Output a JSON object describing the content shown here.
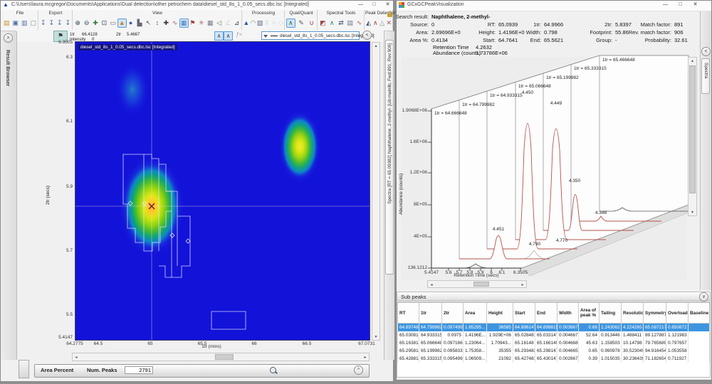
{
  "left_window": {
    "title": "C:\\Users\\laura.mcgregor\\Documents\\Applications\\Dual detection\\other petrochem data\\diesel_std_8s_1_0.05_secs.dbc.lsc [Integrated]",
    "controls": {
      "minimize": "—",
      "maximize": "□",
      "close": "✕"
    },
    "ribbon": {
      "groups": [
        {
          "label": "File",
          "icons": [
            {
              "name": "open-file-icon",
              "glyph": "▤",
              "color": "#c89028"
            },
            {
              "name": "save-icon",
              "glyph": "▣",
              "color": "#4a6fa5"
            },
            {
              "name": "save-all-icon",
              "glyph": "▥",
              "color": "#4a6fa5"
            },
            {
              "name": "close-file-icon",
              "glyph": "▢",
              "color": "#888888"
            }
          ]
        },
        {
          "label": "Export",
          "icons": [
            {
              "name": "export-image-icon",
              "glyph": "↧",
              "color": "#44679a"
            },
            {
              "name": "export-data-icon",
              "glyph": "↧",
              "color": "#44679a"
            },
            {
              "name": "export-report-icon",
              "glyph": "↧",
              "color": "#44679a"
            },
            {
              "name": "export-all-icon",
              "glyph": "↧",
              "color": "#44679a"
            }
          ]
        },
        {
          "label": "View",
          "icons": [
            {
              "name": "zoom-in-icon",
              "glyph": "⊕",
              "color": "#334455"
            },
            {
              "name": "zoom-out-icon",
              "glyph": "⊖",
              "color": "#334455"
            },
            {
              "name": "pan-icon",
              "glyph": "✚",
              "color": "#35783a"
            },
            {
              "name": "full-view-icon",
              "glyph": "⊡",
              "color": "#334455"
            },
            {
              "name": "scale-icon",
              "glyph": "▭",
              "color": "#666666"
            },
            {
              "name": "colorize-icon",
              "glyph": "▲",
              "color": "#e07818",
              "selected": true
            },
            {
              "name": "globe-icon",
              "glyph": "●",
              "color": "#3858a8"
            },
            {
              "name": "intensity-icon",
              "glyph": "▙",
              "color": "#666677"
            },
            {
              "name": "cursor-icon",
              "glyph": "↖",
              "color": "#555555"
            },
            {
              "name": "marker-icon",
              "glyph": "↕",
              "color": "#555555"
            },
            {
              "name": "crosshair-icon",
              "glyph": "✚",
              "color": "#333333"
            },
            {
              "name": "chart-icon",
              "glyph": "∿",
              "color": "#995555"
            },
            {
              "name": "grid-icon",
              "glyph": "▦",
              "color": "#3a7ab8",
              "selected": true
            },
            {
              "name": "flag-icon",
              "glyph": "⚑",
              "color": "#a04040"
            },
            {
              "name": "burst-icon",
              "glyph": "✳",
              "color": "#aa6666"
            },
            {
              "name": "table-icon",
              "glyph": "▦",
              "color": "#777788"
            },
            {
              "name": "audio-icon",
              "glyph": "◁",
              "color": "#667766"
            },
            {
              "name": "angle-icon",
              "glyph": "∠",
              "color": "#9999aa",
              "disabled": true
            },
            {
              "name": "fit-icon",
              "glyph": "⊿",
              "color": "#334455"
            }
          ]
        },
        {
          "label": "Processing",
          "icons": [
            {
              "name": "detect-icon",
              "glyph": "▲",
              "color": "#2a58a8"
            },
            {
              "name": "baseline-icon",
              "glyph": "◠",
              "color": "#777777"
            },
            {
              "name": "filter-icon",
              "glyph": "▧",
              "color": "#556688"
            },
            {
              "name": "align-icon",
              "glyph": "⇕",
              "color": "#99aaaa",
              "disabled": true
            },
            {
              "name": "smooth-icon",
              "glyph": "≈",
              "color": "#99aaaa",
              "disabled": true
            },
            {
              "name": "resample-icon",
              "glyph": "◇",
              "color": "#99aaaa",
              "disabled": true
            }
          ]
        },
        {
          "label": "Qual/Quant",
          "icons": [
            {
              "name": "quantify-icon",
              "glyph": "∧",
              "color": "#2a6a2a",
              "selected": true
            },
            {
              "name": "edit-quant-icon",
              "glyph": "✎",
              "color": "#555555"
            },
            {
              "name": "calibrate-icon",
              "glyph": "∪",
              "color": "#993333"
            }
          ]
        },
        {
          "label": "Spectral Tools",
          "icons": [
            {
              "name": "spectrum-subtract-icon",
              "glyph": "◩",
              "color": "#994444"
            },
            {
              "name": "peak-spectrum-icon",
              "glyph": "∧",
              "color": "#228866"
            },
            {
              "name": "compare-spectra-icon",
              "glyph": "⇄",
              "color": "#335577"
            },
            {
              "name": "library-search-icon",
              "glyph": "▤",
              "color": "#667788"
            },
            {
              "name": "spectrum-view-icon",
              "glyph": "∿",
              "color": "#aa5555"
            }
          ]
        },
        {
          "label": "Peak Detection",
          "icons": [
            {
              "name": "detect-peaks-icon",
              "glyph": "◭",
              "color": "#335577"
            },
            {
              "name": "merge-peaks-icon",
              "glyph": "∧",
              "color": "#aa3333"
            },
            {
              "name": "split-peak-icon",
              "glyph": "△",
              "color": "#888888"
            },
            {
              "name": "delete-peak-icon",
              "glyph": "✕",
              "color": "#aa5555"
            }
          ]
        }
      ]
    },
    "toolbar2": {
      "tr1_label": "1tr",
      "tr1_value": "66.4128",
      "tr2_label": "2tr",
      "tr2_value": "5.4667",
      "intensity_label": "Intensity",
      "intensity_value": "0",
      "fx_label": "ƒ≈",
      "combo_value": "diesel_std_8s_1_0.05_secs.dbc.lsc [Integrated]"
    },
    "result_browser_tab": "Result Browser",
    "spectra_side_tab": "Spectra [RT = 65.09382] Naphthalene, 2-methyl- [Lib:mainlib; Fwd:891; Rev:906]",
    "plot": {
      "inner_title": "diesel_std_8s_1_0.05_secs.dbc.lsc [Integrated]",
      "xlabel": "1tr (mins)",
      "ylabel": "2tr (secs)"
    },
    "statusbar": {
      "area_percent_label": "Area Percent",
      "num_peaks_label": "Num. Peaks",
      "num_peaks_value": "2791"
    }
  },
  "right_window": {
    "title": "GCxGCPeakVisualization",
    "controls": {
      "minimize": "—",
      "maximize": "□",
      "close": "✕"
    },
    "spectra_tab": "Spectra",
    "info": {
      "search_label": "Search result:",
      "search_value": "Naphthalene, 2-methyl-",
      "source_label": "Source:",
      "source": "0",
      "rt_label": "RT:",
      "rt": "65.0939",
      "tr1_label": "1tr:",
      "tr1": "64.9966",
      "tr2_label": "2tr:",
      "tr2": "5.8397",
      "match_label": "Match factor:",
      "match": "891",
      "area_label": "Area:",
      "area": "2.69696E+0",
      "height_label": "Height:",
      "height": "1.4196E+0",
      "width_label": "Width:",
      "width": "0.798",
      "footprint_label": "Footprint:",
      "footprint": "55.86",
      "rev_match_label": "Rev. match factor:",
      "rev_match": "906",
      "area_pct_label": "Area %:",
      "area_pct": "0.4134",
      "start_label": "Start:",
      "start": "64.7641",
      "end_label": "End:",
      "end": "65.5621",
      "group_label": "Group:",
      "group": "-",
      "prob_label": "Probability:",
      "prob": "32.61",
      "rt_time_label": "Retention Time",
      "rt_time": "4.2632",
      "abundance_label": "Abundance (counts)",
      "abundance": "1.73786E+06"
    },
    "subpeaks": {
      "title": "Sub peaks",
      "columns": [
        "RT",
        "1tr",
        "2tr",
        "Area",
        "Height",
        "Start",
        "End",
        "Width",
        "Area of peak %",
        "Tailing",
        "Resolutio",
        "Symmetry",
        "Overload",
        "Baseline"
      ],
      "selected_row": 0,
      "rows": [
        [
          "64.897481",
          "64.799982",
          "0.097499",
          "1.85295...",
          "36585",
          "64.896147",
          "64.899815",
          "0.003667",
          "0.69",
          "1.243062",
          "4.224265",
          "65.087217",
          "0.650872",
          ""
        ],
        [
          "65.030815",
          "64.933315",
          "0.0975",
          "1.4196E...",
          "1.929E+06",
          "65.028481",
          "65.033147",
          "0.004667",
          "52.64",
          "0.913446",
          "1.488411",
          "89.127887",
          "1.121983",
          ""
        ],
        [
          "65.163814",
          "65.066648",
          "0.097166",
          "1.23064...",
          "1.70943...",
          "65.16148",
          "65.166149",
          "0.004668",
          "45.63",
          "1.158503",
          "10.14798",
          "79.765689",
          "0.797657",
          ""
        ],
        [
          "65.295814",
          "65.199982",
          "0.095833",
          "1.75358...",
          "35355",
          "65.293483",
          "65.298147",
          "0.004665",
          "0.65",
          "0.990978",
          "30.523049",
          "94.916454",
          "1.053558",
          ""
        ],
        [
          "65.428814",
          "65.333315",
          "0.095499",
          "1.06509...",
          "21092",
          "65.427481",
          "65.430147",
          "0.002667",
          "0.39",
          "1.015035",
          "30.236439",
          "71.182654",
          "0.711927",
          ""
        ]
      ]
    }
  },
  "chart_data": [
    {
      "type": "heatmap",
      "title": "diesel_std_8s_1_0.05_secs.dbc.lsc [Integrated]",
      "xlabel": "1tr (mins)",
      "ylabel": "2tr (secs)",
      "xlim": [
        64.2775,
        67.0731
      ],
      "ylim": [
        5.4147,
        6.3505
      ],
      "xticks": [
        "64.2775",
        "64.5",
        "65",
        "65.5",
        "66",
        "66.5",
        "67.0731"
      ],
      "yticks": [
        "6.3505",
        "6.3",
        "6.1",
        "5.9",
        "5.7",
        "5.5",
        "5.4147"
      ],
      "peaks": [
        {
          "x": 65.01,
          "y": 5.84,
          "intensity": "high"
        },
        {
          "x": 66.43,
          "y": 6.02,
          "intensity": "medium"
        },
        {
          "x": 64.82,
          "y": 6.2,
          "intensity": "faint"
        }
      ],
      "crosshair": {
        "x": 65.01,
        "y": 5.84
      }
    },
    {
      "type": "line",
      "subtype": "3d-waterfall",
      "xlabel": "Retention Time (secs)",
      "ylabel": "Abundance (counts)",
      "ylim": [
        136.1212,
        1906800
      ],
      "yticks": [
        "1.9068E+06",
        "1.6E+06",
        "1.2E+06",
        "8E+05",
        "4E+05",
        "136.1212"
      ],
      "xticks": [
        "5.4147",
        "5.6",
        "5.7",
        "5.8",
        "5.9",
        "6",
        "6.1",
        "6.3505"
      ],
      "slices": [
        {
          "label": "1tr = 64.666648",
          "peaks": []
        },
        {
          "label": "1tr = 64.799982",
          "peaks": [
            {
              "label": "4.451"
            },
            {
              "label": "4.790"
            }
          ]
        },
        {
          "label": "1tr = 64.933315",
          "peaks": [
            {
              "label": "4.450"
            }
          ]
        },
        {
          "label": "1tr = 65.066648",
          "peaks": [
            {
              "label": "4.449"
            },
            {
              "label": "4.770"
            }
          ]
        },
        {
          "label": "1tr = 65.199982",
          "peaks": [
            {
              "label": "4.350"
            }
          ]
        },
        {
          "label": "1tr = 65.333315",
          "peaks": [
            {
              "label": "4.348"
            }
          ]
        },
        {
          "label": "1tr = 65.466648",
          "peaks": []
        }
      ]
    }
  ]
}
